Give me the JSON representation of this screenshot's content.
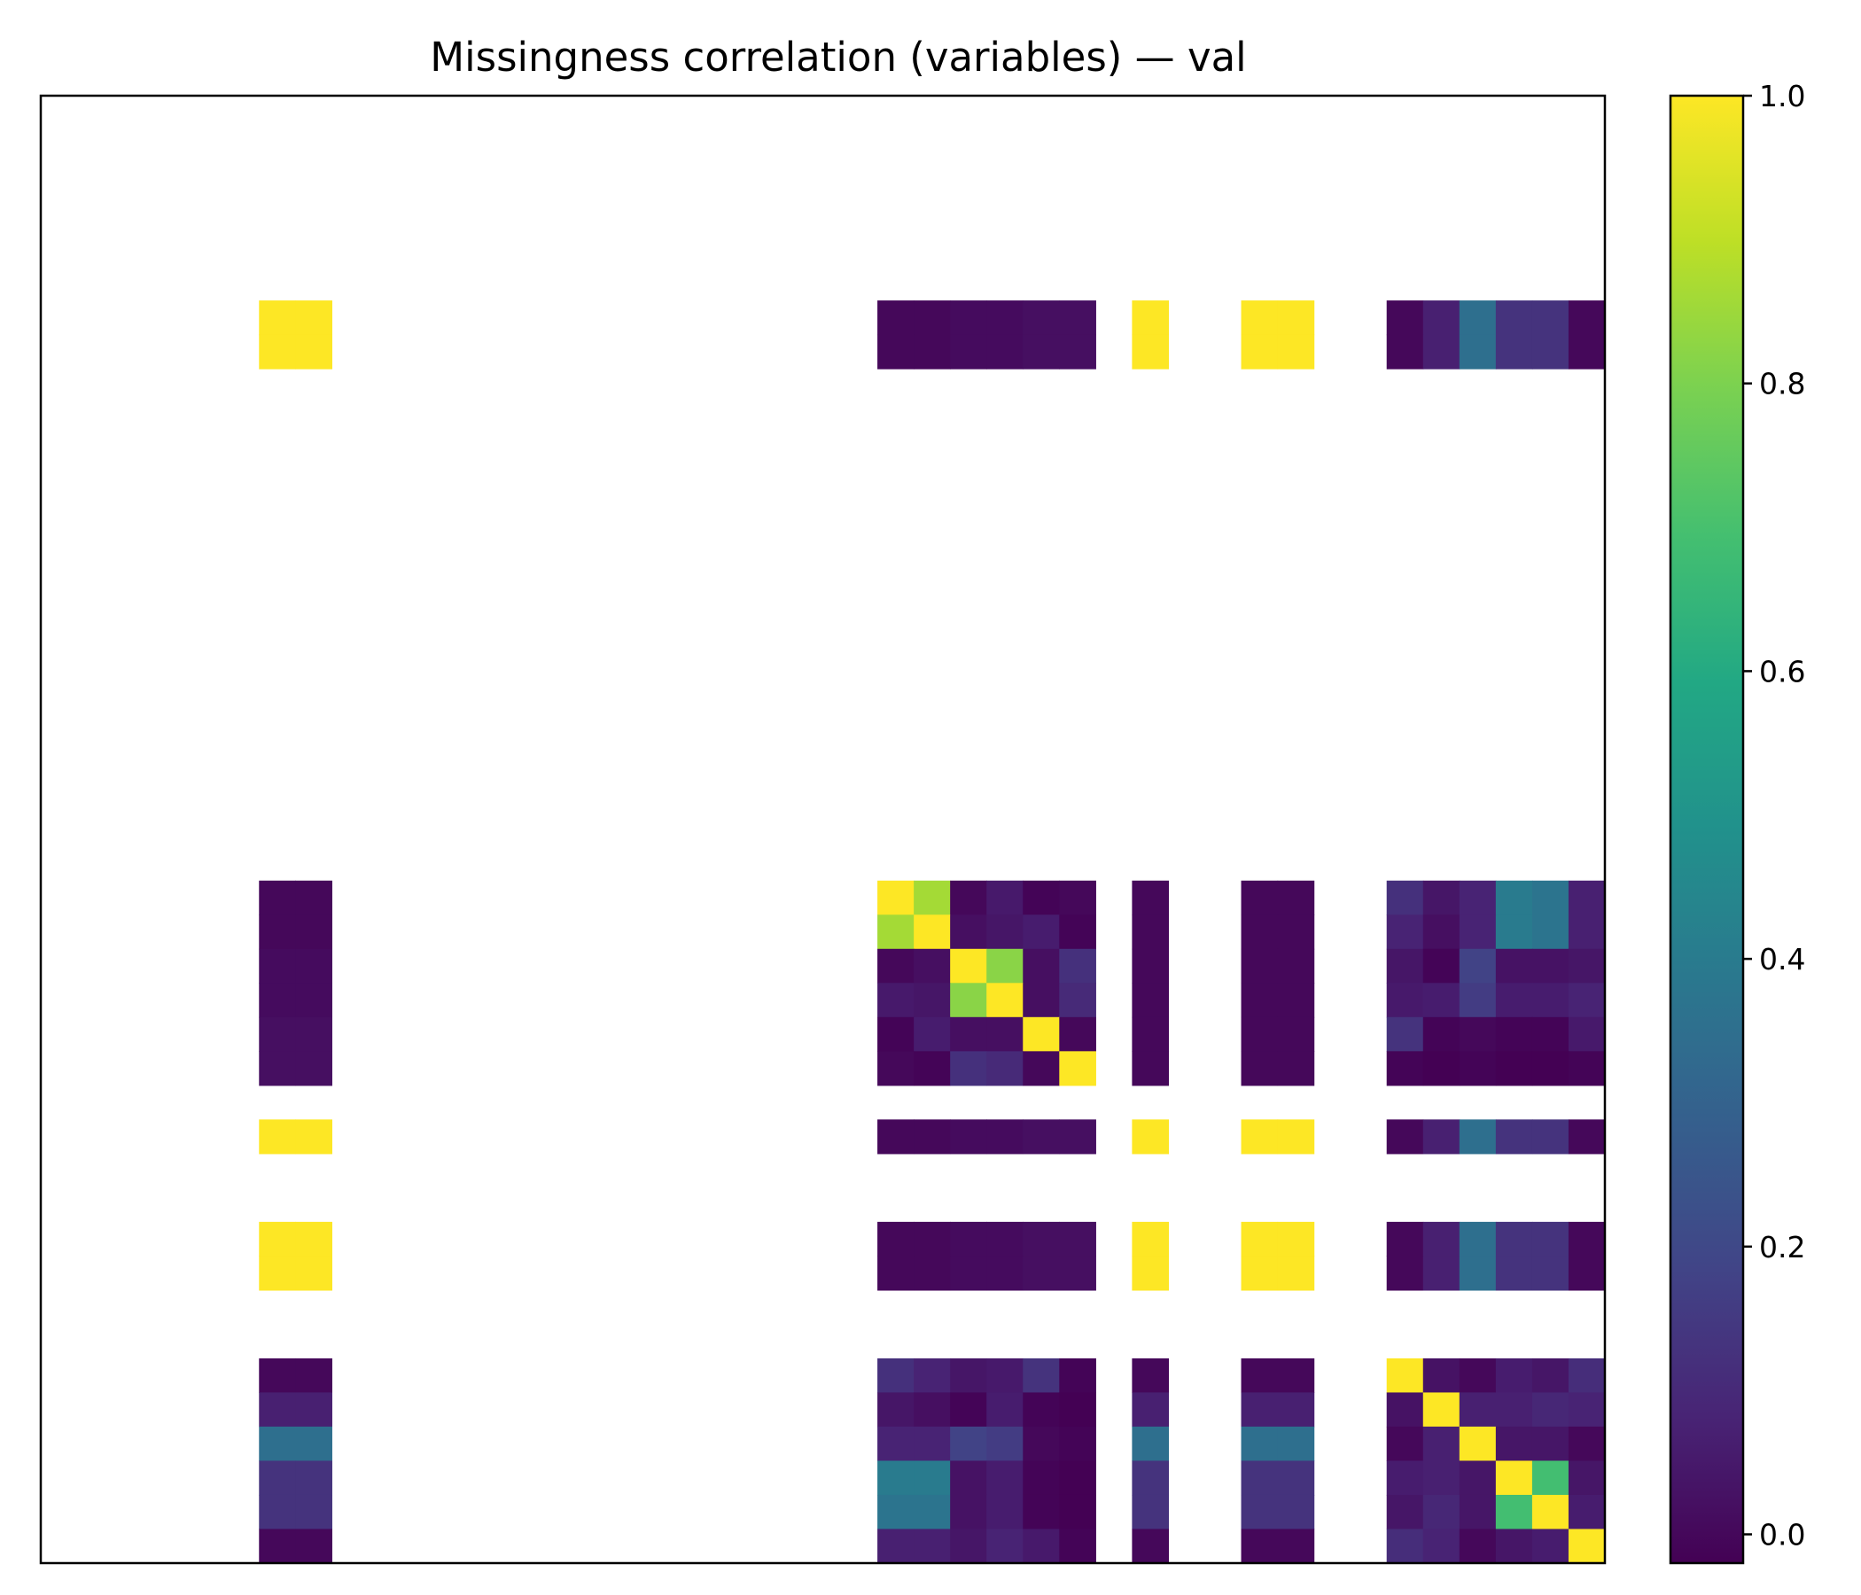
{
  "chart_data": {
    "type": "heatmap",
    "title": "Missingness correlation (variables) — val",
    "xlabel": "",
    "ylabel": "",
    "n": 43,
    "colormap": "viridis",
    "zlim": [
      -0.02,
      1.0
    ],
    "missing_value_color": "#ffffff",
    "colorbar": {
      "ticks": [
        0.0,
        0.2,
        0.4,
        0.6,
        0.8,
        1.0
      ],
      "tick_labels": [
        "0.0",
        "0.2",
        "0.4",
        "0.6",
        "0.8",
        "1.0"
      ]
    },
    "variable_indices": [
      6,
      7,
      23,
      24,
      25,
      26,
      27,
      28,
      30,
      33,
      34,
      37,
      38,
      39,
      40,
      41,
      42
    ],
    "matrix": [
      [
        1.0,
        1.0,
        0.0,
        0.0,
        0.01,
        0.01,
        0.02,
        0.02,
        1.0,
        1.0,
        1.0,
        0.0,
        0.07,
        0.35,
        0.13,
        0.13,
        0.0
      ],
      [
        1.0,
        1.0,
        0.0,
        0.0,
        0.01,
        0.01,
        0.02,
        0.02,
        1.0,
        1.0,
        1.0,
        0.0,
        0.07,
        0.35,
        0.13,
        0.13,
        0.0
      ],
      [
        0.0,
        0.0,
        1.0,
        0.86,
        0.0,
        0.05,
        -0.01,
        0.0,
        0.0,
        0.0,
        0.0,
        0.12,
        0.04,
        0.08,
        0.4,
        0.37,
        0.07
      ],
      [
        0.0,
        0.0,
        0.86,
        1.0,
        0.02,
        0.04,
        0.06,
        -0.01,
        0.0,
        0.0,
        0.0,
        0.08,
        0.02,
        0.08,
        0.4,
        0.37,
        0.07
      ],
      [
        0.01,
        0.01,
        0.0,
        0.02,
        1.0,
        0.82,
        0.02,
        0.12,
        0.0,
        0.0,
        0.0,
        0.04,
        -0.01,
        0.18,
        0.03,
        0.03,
        0.04
      ],
      [
        0.01,
        0.01,
        0.05,
        0.04,
        0.82,
        1.0,
        0.02,
        0.1,
        0.0,
        0.0,
        0.0,
        0.05,
        0.06,
        0.16,
        0.06,
        0.06,
        0.08
      ],
      [
        0.02,
        0.02,
        -0.01,
        0.06,
        0.02,
        0.02,
        1.0,
        0.0,
        0.0,
        0.0,
        0.0,
        0.13,
        -0.01,
        0.0,
        -0.01,
        -0.01,
        0.05
      ],
      [
        0.02,
        0.02,
        0.0,
        -0.01,
        0.12,
        0.1,
        0.0,
        1.0,
        0.0,
        0.0,
        0.0,
        -0.01,
        -0.02,
        -0.01,
        -0.02,
        -0.02,
        -0.01
      ],
      [
        1.0,
        1.0,
        0.0,
        0.0,
        0.01,
        0.01,
        0.02,
        0.02,
        1.0,
        1.0,
        1.0,
        0.0,
        0.07,
        0.35,
        0.13,
        0.13,
        0.0
      ],
      [
        1.0,
        1.0,
        0.0,
        0.0,
        0.01,
        0.01,
        0.02,
        0.02,
        1.0,
        1.0,
        1.0,
        0.0,
        0.07,
        0.35,
        0.13,
        0.13,
        0.0
      ],
      [
        1.0,
        1.0,
        0.0,
        0.0,
        0.01,
        0.01,
        0.02,
        0.02,
        1.0,
        1.0,
        1.0,
        0.0,
        0.07,
        0.35,
        0.13,
        0.13,
        0.0
      ],
      [
        0.0,
        0.0,
        0.12,
        0.08,
        0.04,
        0.05,
        0.13,
        -0.01,
        0.0,
        0.0,
        0.0,
        1.0,
        0.03,
        0.0,
        0.06,
        0.04,
        0.11
      ],
      [
        0.07,
        0.07,
        0.04,
        0.02,
        -0.01,
        0.06,
        -0.01,
        -0.02,
        0.07,
        0.07,
        0.07,
        0.03,
        1.0,
        0.07,
        0.07,
        0.09,
        0.08
      ],
      [
        0.35,
        0.35,
        0.08,
        0.08,
        0.18,
        0.16,
        0.0,
        -0.01,
        0.35,
        0.35,
        0.35,
        0.0,
        0.07,
        1.0,
        0.04,
        0.04,
        0.0
      ],
      [
        0.13,
        0.13,
        0.4,
        0.4,
        0.03,
        0.06,
        -0.01,
        -0.02,
        0.13,
        0.13,
        0.13,
        0.06,
        0.07,
        0.04,
        1.0,
        0.69,
        0.04
      ],
      [
        0.13,
        0.13,
        0.37,
        0.37,
        0.03,
        0.06,
        -0.01,
        -0.02,
        0.13,
        0.13,
        0.13,
        0.04,
        0.09,
        0.04,
        0.69,
        1.0,
        0.06
      ],
      [
        0.0,
        0.0,
        0.07,
        0.07,
        0.04,
        0.08,
        0.05,
        -0.01,
        0.0,
        0.0,
        0.0,
        0.11,
        0.08,
        0.0,
        0.04,
        0.06,
        1.0
      ]
    ]
  }
}
